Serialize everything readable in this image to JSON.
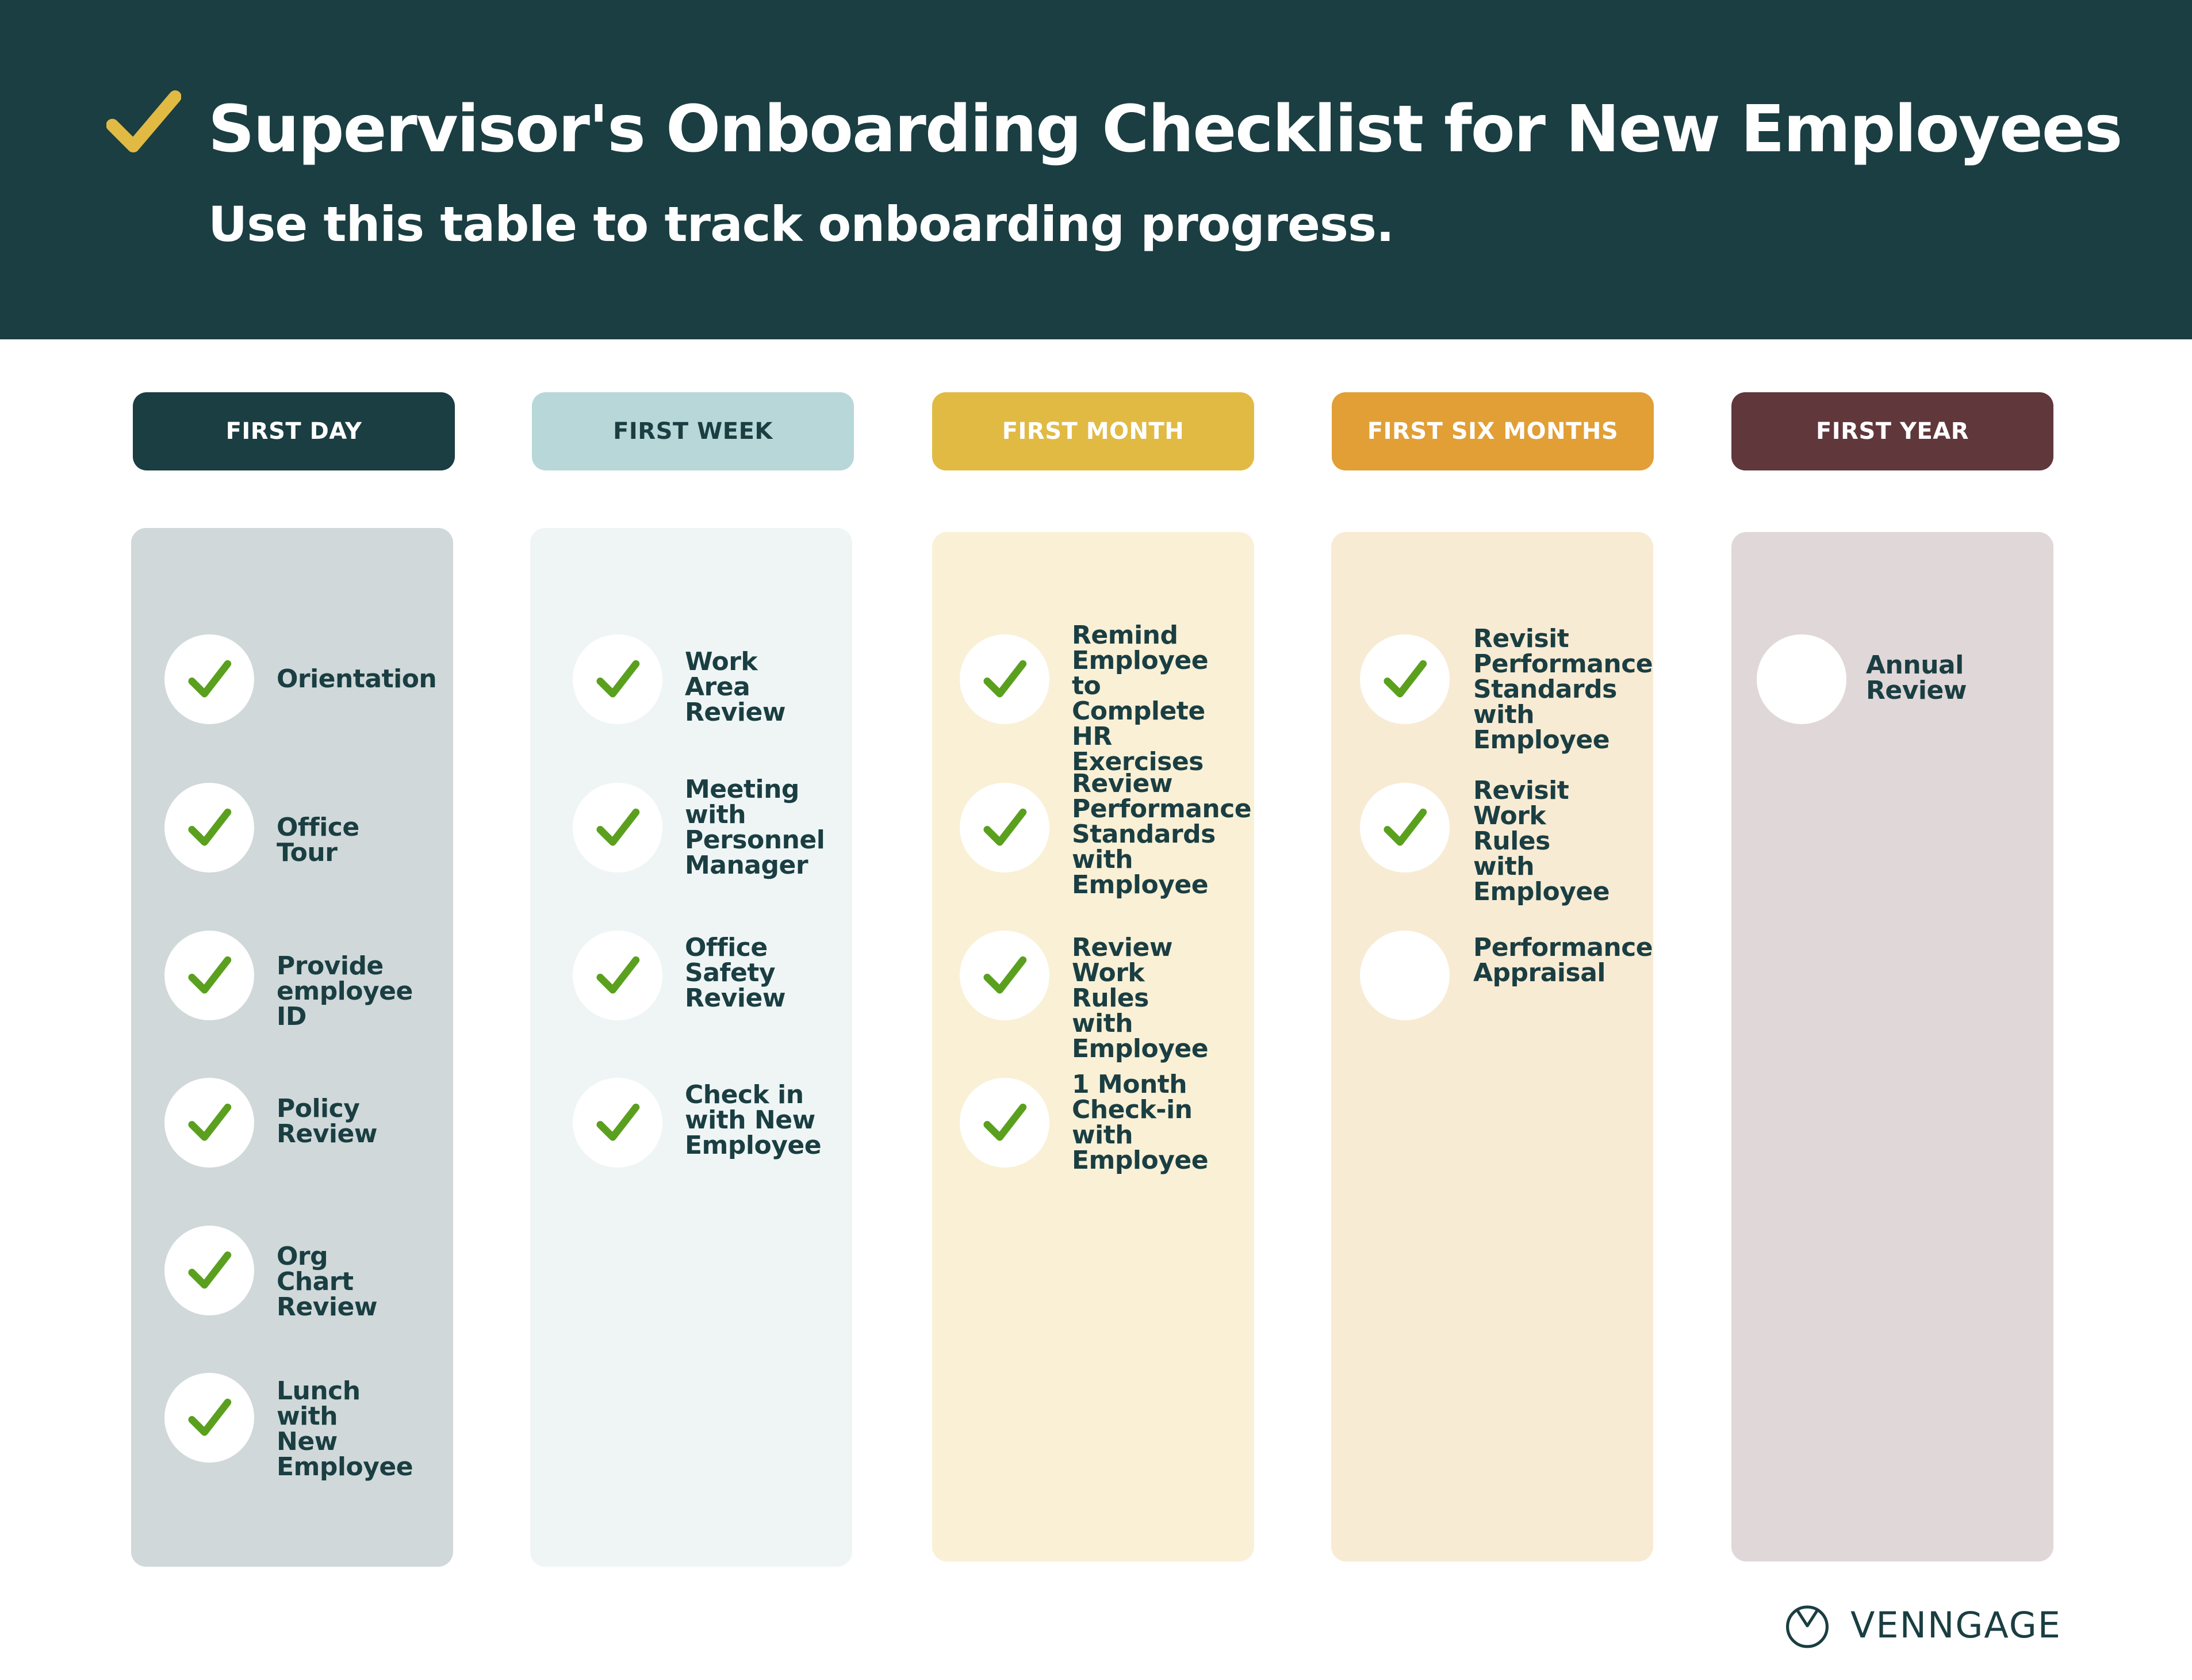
{
  "header": {
    "title": "Supervisor's Onboarding Checklist for New Employees",
    "subtitle": "Use this table to track onboarding progress.",
    "icon": "checkmark-icon",
    "background_color": "#1a3e42",
    "check_color": "#e1ba44"
  },
  "columns": [
    {
      "label": "FIRST DAY",
      "color": "#1a3e42",
      "items": [
        {
          "label": "Orientation",
          "checked": true
        },
        {
          "label": "Office Tour",
          "checked": true
        },
        {
          "label": "Provide\nemployee ID",
          "checked": true
        },
        {
          "label": "Policy\nReview",
          "checked": true
        },
        {
          "label": "Org Chart\nReview",
          "checked": true
        },
        {
          "label": "Lunch with\nNew\nEmployee",
          "checked": true
        }
      ]
    },
    {
      "label": "FIRST WEEK",
      "color": "#b8d7d8",
      "items": [
        {
          "label": "Work Area\nReview",
          "checked": true
        },
        {
          "label": "Meeting\nwith\nPersonnel\nManager",
          "checked": true
        },
        {
          "label": "Office\nSafety\nReview",
          "checked": true
        },
        {
          "label": "Check in\nwith New\nEmployee",
          "checked": true
        }
      ]
    },
    {
      "label": "FIRST MONTH",
      "color": "#e1ba44",
      "items": [
        {
          "label": "Remind\nEmployee to\nComplete\nHR Exercises",
          "checked": true
        },
        {
          "label": "Review\nPerformance\nStandards\nwith\nEmployee",
          "checked": true
        },
        {
          "label": "Review Work\nRules with\nEmployee",
          "checked": true
        },
        {
          "label": "1 Month\nCheck-in\nwith\nEmployee",
          "checked": true
        }
      ]
    },
    {
      "label": "FIRST SIX MONTHS",
      "color": "#e19f35",
      "items": [
        {
          "label": "Revisit\nPerformance\nStandards\nwith\nEmployee",
          "checked": true
        },
        {
          "label": "Revisit Work\nRules with\nEmployee",
          "checked": true
        },
        {
          "label": "Performance\nAppraisal",
          "checked": false
        }
      ]
    },
    {
      "label": "FIRST YEAR",
      "color": "#60373b",
      "items": [
        {
          "label": "Annual\nReview",
          "checked": false
        }
      ]
    }
  ],
  "check_color": "#5aa01e",
  "brand": {
    "name": "VENNGAGE",
    "icon": "venngage-logo-icon"
  }
}
